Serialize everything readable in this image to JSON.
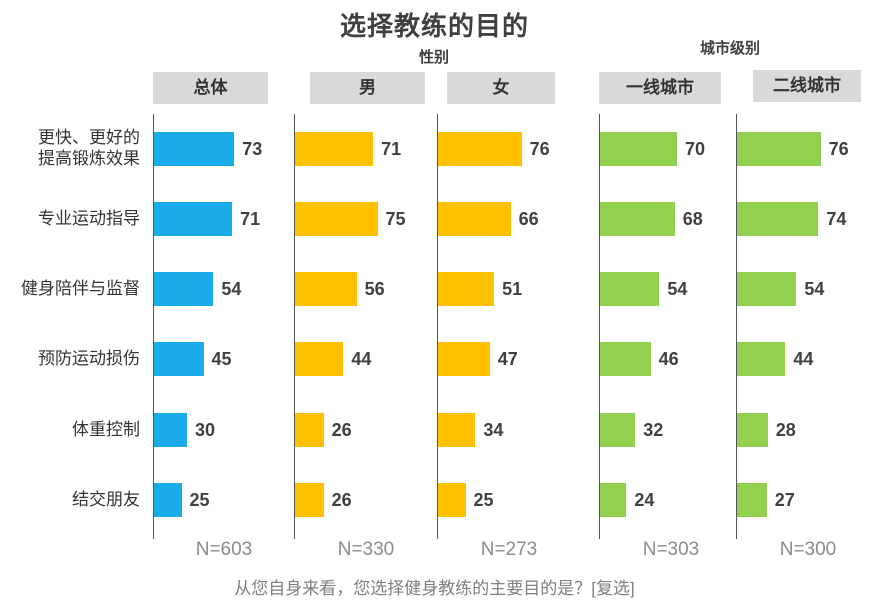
{
  "title": "选择教练的目的",
  "group_labels": {
    "gender": "性别",
    "city": "城市级别"
  },
  "footnote": "从您自身来看，您选择健身教练的主要目的是？[复选]",
  "colors": {
    "total": "#1aabe9",
    "gender": "#ffc000",
    "city": "#92d050"
  },
  "chart_data": {
    "type": "bar",
    "orientation": "horizontal",
    "title": "选择教练的目的",
    "categories": [
      "更快、更好的\n提高锻炼效果",
      "专业运动指导",
      "健身陪伴与监督",
      "预防运动损伤",
      "体重控制",
      "结交朋友"
    ],
    "series": [
      {
        "name": "总体",
        "sample": "N=603",
        "color": "#1aabe9",
        "values": [
          73,
          71,
          54,
          45,
          30,
          25
        ]
      },
      {
        "name": "男",
        "sample": "N=330",
        "color": "#ffc000",
        "values": [
          71,
          75,
          56,
          44,
          26,
          26
        ]
      },
      {
        "name": "女",
        "sample": "N=273",
        "color": "#ffc000",
        "values": [
          76,
          66,
          51,
          47,
          34,
          25
        ]
      },
      {
        "name": "一线城市",
        "sample": "N=303",
        "color": "#92d050",
        "values": [
          70,
          68,
          54,
          46,
          32,
          24
        ]
      },
      {
        "name": "二线城市",
        "sample": "N=300",
        "color": "#92d050",
        "values": [
          76,
          74,
          54,
          44,
          28,
          27
        ]
      }
    ],
    "xlim": [
      0,
      100
    ]
  }
}
